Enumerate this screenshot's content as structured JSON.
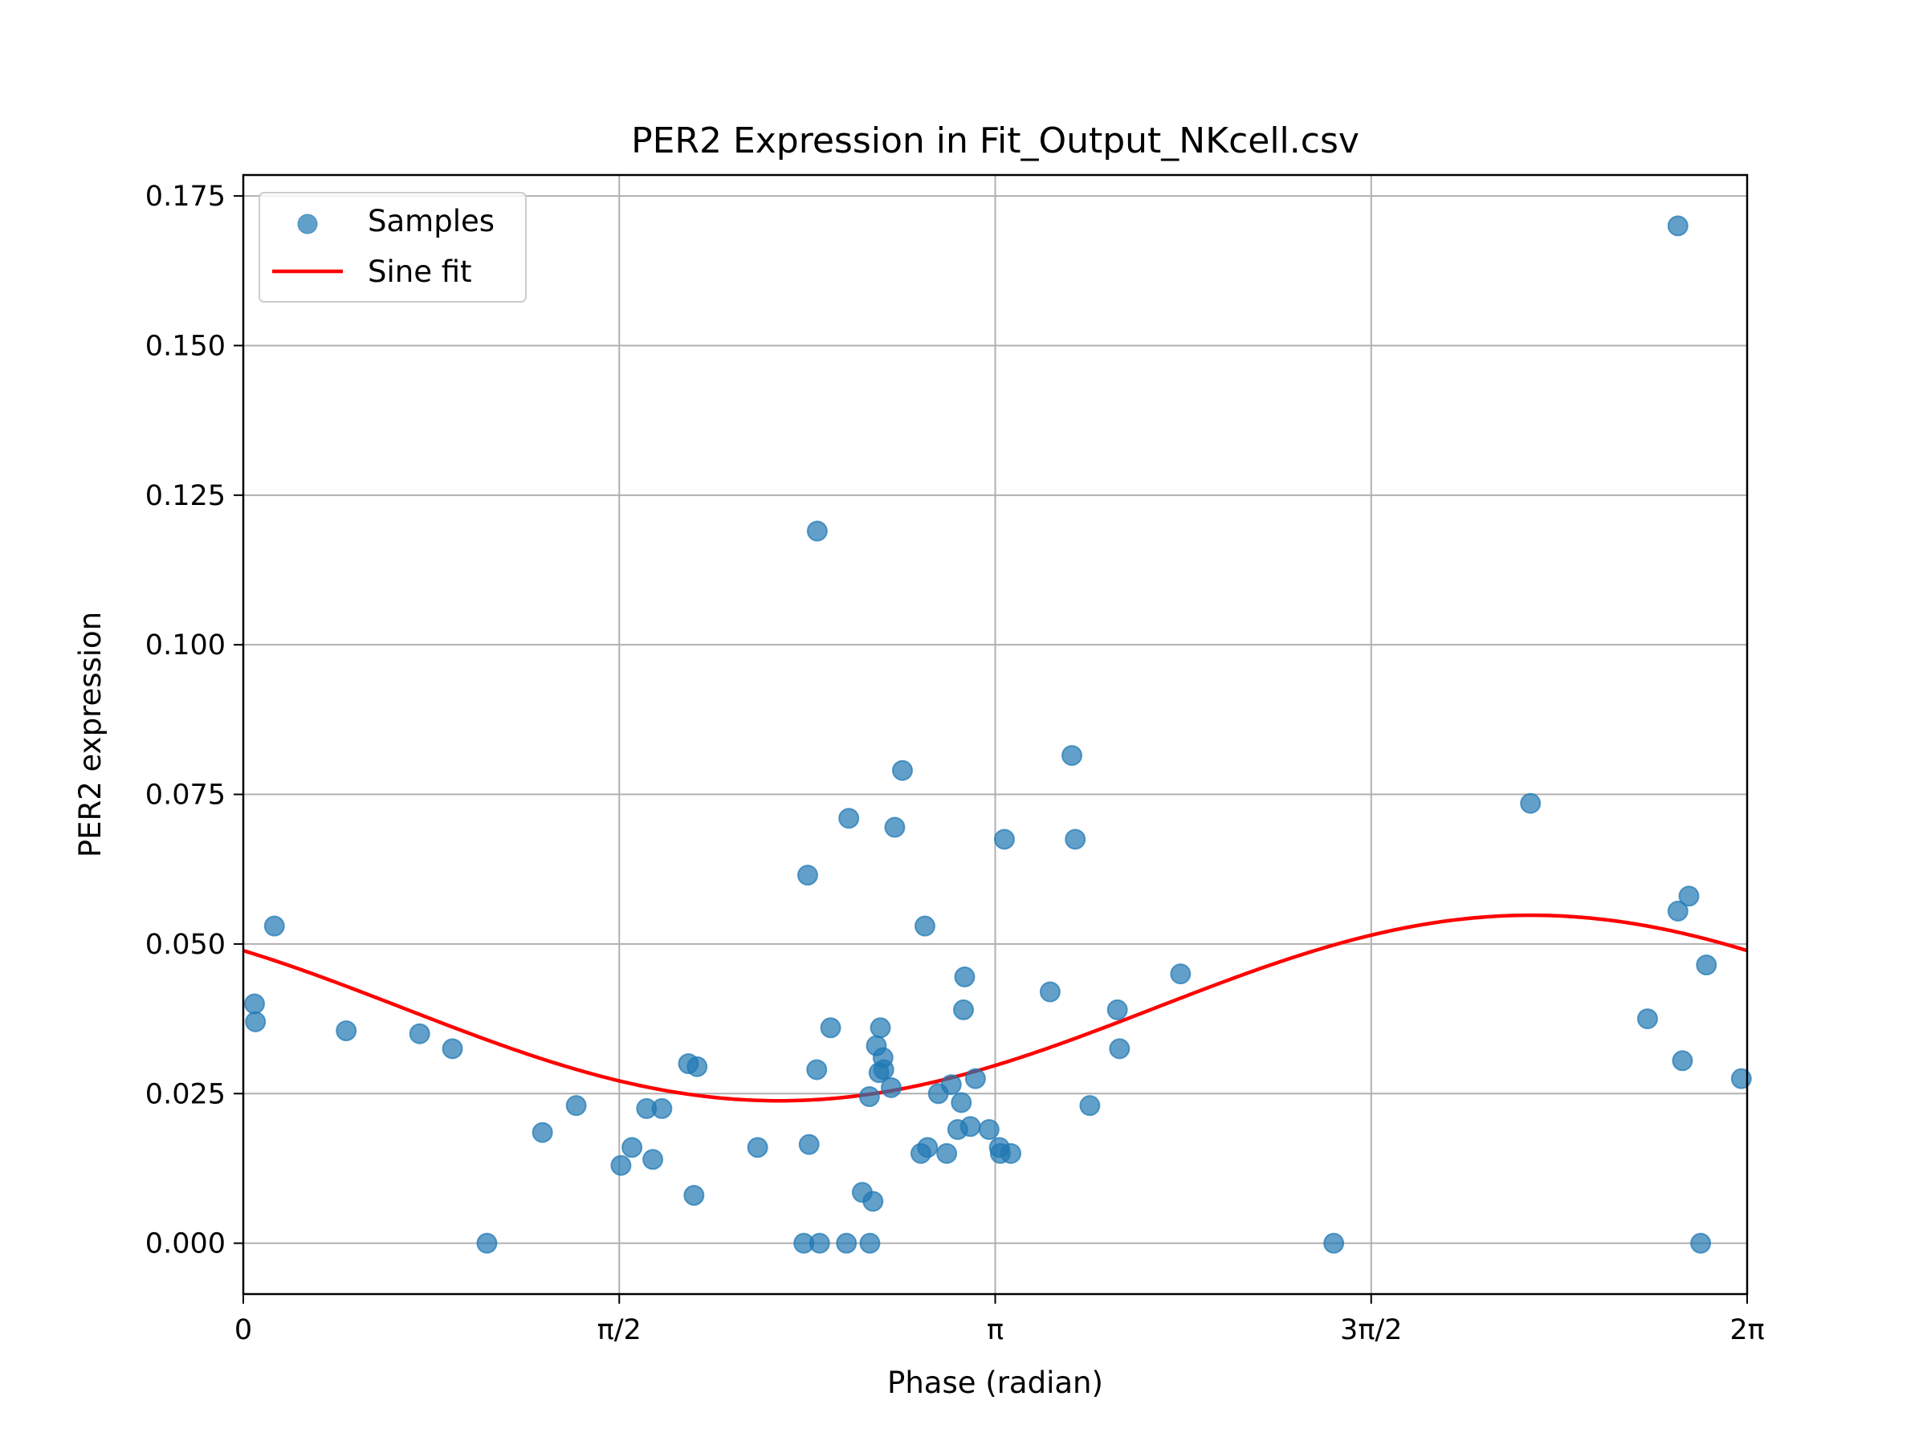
{
  "chart_data": {
    "type": "scatter",
    "title": "PER2 Expression in Fit_Output_NKcell.csv",
    "xlabel": "Phase (radian)",
    "ylabel": "PER2 expression",
    "xlim": [
      0,
      6.2832
    ],
    "ylim": [
      -0.0085,
      0.1785
    ],
    "x_ticks": [
      {
        "value": 0,
        "label": "0"
      },
      {
        "value": 1.5708,
        "label": "π/2"
      },
      {
        "value": 3.1416,
        "label": "π"
      },
      {
        "value": 4.7124,
        "label": "3π/2"
      },
      {
        "value": 6.2832,
        "label": "2π"
      }
    ],
    "y_ticks": [
      {
        "value": 0.0,
        "label": "0.000"
      },
      {
        "value": 0.025,
        "label": "0.025"
      },
      {
        "value": 0.05,
        "label": "0.050"
      },
      {
        "value": 0.075,
        "label": "0.075"
      },
      {
        "value": 0.1,
        "label": "0.100"
      },
      {
        "value": 0.125,
        "label": "0.125"
      },
      {
        "value": 0.15,
        "label": "0.150"
      },
      {
        "value": 0.175,
        "label": "0.175"
      }
    ],
    "grid": true,
    "legend_position": "top-left",
    "legend": [
      {
        "label": "Samples",
        "kind": "marker"
      },
      {
        "label": "Sine fit",
        "kind": "line"
      }
    ],
    "colors": {
      "samples": "#1f77b4",
      "fit": "#ff0000",
      "grid": "#b0b0b0"
    },
    "series": [
      {
        "name": "Samples",
        "kind": "scatter",
        "points": [
          [
            0.047,
            0.04
          ],
          [
            0.051,
            0.037
          ],
          [
            0.13,
            0.053
          ],
          [
            0.43,
            0.0355
          ],
          [
            0.737,
            0.035
          ],
          [
            0.874,
            0.0325
          ],
          [
            1.018,
            0.0
          ],
          [
            1.25,
            0.0185
          ],
          [
            1.391,
            0.023
          ],
          [
            1.578,
            0.013
          ],
          [
            1.624,
            0.016
          ],
          [
            1.685,
            0.0225
          ],
          [
            1.711,
            0.014
          ],
          [
            1.749,
            0.0225
          ],
          [
            1.86,
            0.03
          ],
          [
            1.896,
            0.0295
          ],
          [
            1.883,
            0.008
          ],
          [
            2.149,
            0.016
          ],
          [
            2.358,
            0.0615
          ],
          [
            2.364,
            0.0165
          ],
          [
            2.342,
            0.0
          ],
          [
            2.398,
            0.119
          ],
          [
            2.396,
            0.029
          ],
          [
            2.408,
            0.0
          ],
          [
            2.454,
            0.036
          ],
          [
            2.52,
            0.0
          ],
          [
            2.53,
            0.071
          ],
          [
            2.586,
            0.0085
          ],
          [
            2.616,
            0.0245
          ],
          [
            2.618,
            0.0
          ],
          [
            2.631,
            0.007
          ],
          [
            2.645,
            0.033
          ],
          [
            2.662,
            0.036
          ],
          [
            2.656,
            0.0285
          ],
          [
            2.673,
            0.031
          ],
          [
            2.676,
            0.029
          ],
          [
            2.707,
            0.026
          ],
          [
            2.722,
            0.0695
          ],
          [
            2.754,
            0.079
          ],
          [
            2.831,
            0.015
          ],
          [
            2.848,
            0.053
          ],
          [
            2.859,
            0.016
          ],
          [
            2.904,
            0.025
          ],
          [
            2.939,
            0.015
          ],
          [
            2.958,
            0.0265
          ],
          [
            2.985,
            0.019
          ],
          [
            3.0,
            0.0235
          ],
          [
            3.009,
            0.039
          ],
          [
            3.014,
            0.0445
          ],
          [
            3.038,
            0.0195
          ],
          [
            3.059,
            0.0275
          ],
          [
            3.116,
            0.019
          ],
          [
            3.159,
            0.016
          ],
          [
            3.163,
            0.015
          ],
          [
            3.18,
            0.0675
          ],
          [
            3.207,
            0.015
          ],
          [
            3.371,
            0.042
          ],
          [
            3.462,
            0.0815
          ],
          [
            3.476,
            0.0675
          ],
          [
            3.537,
            0.023
          ],
          [
            3.652,
            0.039
          ],
          [
            3.661,
            0.0325
          ],
          [
            3.916,
            0.045
          ],
          [
            4.556,
            0.0
          ],
          [
            5.378,
            0.0735
          ],
          [
            5.867,
            0.0375
          ],
          [
            5.994,
            0.17
          ],
          [
            5.994,
            0.0555
          ],
          [
            6.013,
            0.0305
          ],
          [
            6.04,
            0.058
          ],
          [
            6.089,
            0.0
          ],
          [
            6.113,
            0.0465
          ],
          [
            6.259,
            0.0275
          ]
        ]
      },
      {
        "name": "Sine fit",
        "kind": "line",
        "equation": {
          "mean": 0.0393,
          "amplitude": 0.0155,
          "peak_phase": 5.38
        }
      }
    ]
  }
}
